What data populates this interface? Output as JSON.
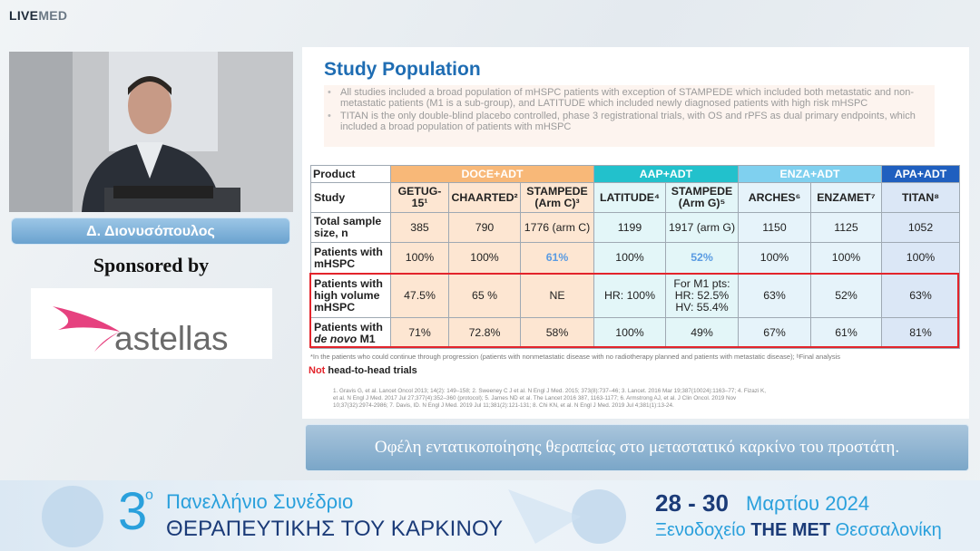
{
  "logo": {
    "live": "LIVE",
    "med": "MED"
  },
  "speaker": {
    "name": "Δ. Διονυσόπουλος"
  },
  "sponsor": {
    "label": "Sponsored by",
    "name": "astellas"
  },
  "slide": {
    "title": "Study Population",
    "bullets": [
      "All studies included a broad population of mHSPC patients with exception of STAMPEDE which included both metastatic and non-metastatic patients (M1 is a sub-group), and LATITUDE which included newly diagnosed patients with high risk mHSPC",
      "TITAN is the only double-blind placebo controlled, phase 3 registrational trials, with OS and rPFS as dual primary endpoints, which included a broad population of patients with mHSPC"
    ],
    "table": {
      "header": [
        "Product",
        "DOCE+ADT",
        "AAP+ADT",
        "ENZA+ADT",
        "APA+ADT"
      ],
      "rows": [
        [
          "Study",
          "GETUG-15¹",
          "CHAARTED²",
          "STAMPEDE (Arm C)³",
          "LATITUDE⁴",
          "STAMPEDE (Arm G)⁵",
          "ARCHES⁶",
          "ENZAMET⁷",
          "TITAN⁸"
        ],
        [
          "Total sample size, n",
          "385",
          "790",
          "1776 (arm C)",
          "1199",
          "1917 (arm G)",
          "1150",
          "1125",
          "1052"
        ],
        [
          "Patients with mHSPC",
          "100%",
          "100%",
          "61%",
          "100%",
          "52%",
          "100%",
          "100%",
          "100%"
        ],
        [
          "Patients with high volume mHSPC",
          "47.5%",
          "65 %",
          "NE",
          "HR: 100%",
          "For M1 pts:\nHR: 52.5%\nHV: 55.4%",
          "63%",
          "52%",
          "63%"
        ],
        [
          [
            "Patients with",
            "de novo",
            "M1"
          ],
          "71%",
          "72.8%",
          "58%",
          "100%",
          "49%",
          "67%",
          "61%",
          "81%"
        ]
      ]
    },
    "footnote": "*In the patients who could continue through progression (patients with nonmetastatic disease with no radiotherapy planned and patients with metastatic disease); ᵇFinal analysis",
    "note": {
      "emphasis": "Not",
      "text": "head-to-head trials"
    },
    "references": "1. Gravis G, et al. Lancet Oncol 2013; 14(2): 149–158; 2. Sweeney C J et al. N Engl J Med. 2015; 373(8):737–46; 3. Lancet. 2016 Mar 19;387(10024):1163–77; 4. Fizazi K, et al. N Engl J Med. 2017 Jul 27;377(4):352–360 (protocol); 5. James ND et al. The Lancet 2016 387, 1163-1177; 6. Armstrong AJ, et al. J Clin Oncol. 2019 Nov 10;37(32):2974-2986; 7. Davis, ID. N Engl J Med. 2019 Jul 11;381(2):121-131; 8. Chi KN, et al. N Engl J Med. 2019 Jul 4;381(1):13-24."
  },
  "caption": "Οφέλη εντατικοποίησης θεραπείας στο μεταστατικό καρκίνο του προστάτη.",
  "banner": {
    "number": "3",
    "ordinal": "ο",
    "line1": "Πανελλήνιο Συνέδριο",
    "line2": "ΘΕΡΑΠΕΥΤΙΚΗΣ ΤΟΥ ΚΑΡΚΙΝΟΥ",
    "dates": "28 - 30",
    "month": "Μαρτίου 2024",
    "venue_label": "Ξενοδοχείο",
    "venue": "THE MET",
    "city": "Θεσσαλονίκη"
  }
}
